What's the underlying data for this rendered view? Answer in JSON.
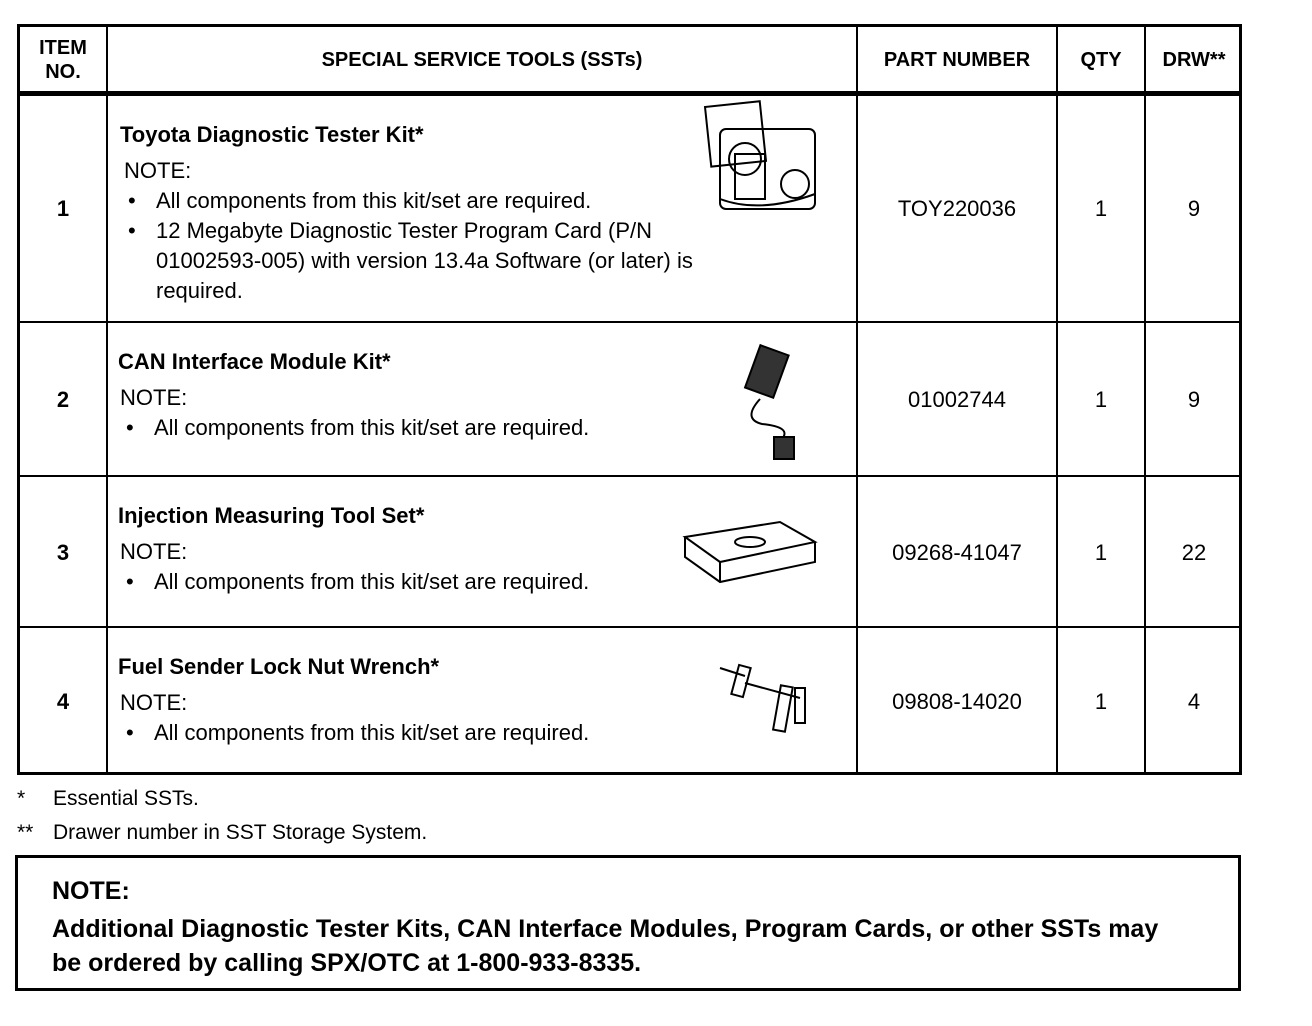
{
  "table": {
    "headers": {
      "item_no": "ITEM NO.",
      "tools": "SPECIAL SERVICE TOOLS (SSTs)",
      "part_number": "PART NUMBER",
      "qty": "QTY",
      "drw": "DRW**"
    },
    "rows": [
      {
        "item": "1",
        "title": "Toyota Diagnostic Tester Kit*",
        "note_label": "NOTE:",
        "bullets": [
          "All components from this kit/set are required.",
          "12 Megabyte Diagnostic Tester Program Card (P/N 01002593-005) with version 13.4a Software (or later) is required."
        ],
        "part_number": "TOY220036",
        "qty": "1",
        "drw": "9",
        "icon": "diagnostic-tester-kit-icon"
      },
      {
        "item": "2",
        "title": "CAN Interface Module Kit*",
        "note_label": "NOTE:",
        "bullets": [
          "All components from this kit/set are required."
        ],
        "part_number": "01002744",
        "qty": "1",
        "drw": "9",
        "icon": "can-interface-module-icon"
      },
      {
        "item": "3",
        "title": "Injection Measuring Tool Set*",
        "note_label": "NOTE:",
        "bullets": [
          "All components from this kit/set are required."
        ],
        "part_number": "09268-41047",
        "qty": "1",
        "drw": "22",
        "icon": "tool-case-icon"
      },
      {
        "item": "4",
        "title": "Fuel Sender Lock Nut Wrench*",
        "note_label": "NOTE:",
        "bullets": [
          "All components from this kit/set are required."
        ],
        "part_number": "09808-14020",
        "qty": "1",
        "drw": "4",
        "icon": "lock-nut-wrench-icon"
      }
    ]
  },
  "footnotes": [
    {
      "symbol": "*",
      "text": "Essential SSTs."
    },
    {
      "symbol": "**",
      "text": "Drawer number in SST Storage System."
    }
  ],
  "note_box": {
    "label": "NOTE:",
    "text": "Additional Diagnostic Tester Kits, CAN Interface Modules, Program Cards, or other SSTs may be ordered by calling SPX/OTC at 1-800-933-8335."
  }
}
